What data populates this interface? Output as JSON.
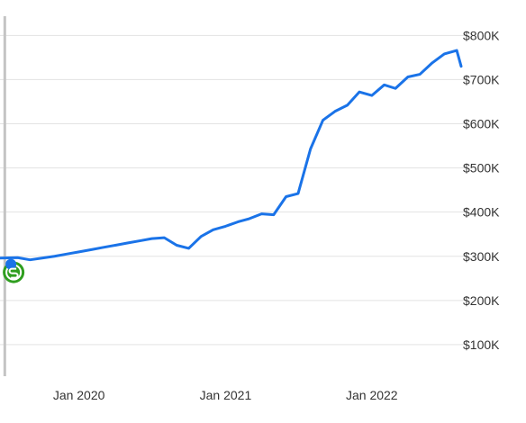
{
  "colors": {
    "line": "#1a73e8",
    "grid": "#e3e3e3",
    "cursor": "#c4c4c4",
    "marker": "#2f9e1f",
    "marker_dot": "#1a73e8",
    "background": "#ffffff"
  },
  "icons": {
    "sale_marker": "dollar-sale-icon"
  },
  "chart_data": {
    "type": "line",
    "title": "",
    "xlabel": "",
    "ylabel": "",
    "ylim": [
      0,
      870000
    ],
    "xlim": [
      "2019-06-18",
      "2022-08-12"
    ],
    "grid": true,
    "y_ticks": [
      {
        "value": 100000,
        "label": "$100K"
      },
      {
        "value": 200000,
        "label": "$200K"
      },
      {
        "value": 300000,
        "label": "$300K"
      },
      {
        "value": 400000,
        "label": "$400K"
      },
      {
        "value": 500000,
        "label": "$500K"
      },
      {
        "value": 600000,
        "label": "$600K"
      },
      {
        "value": 700000,
        "label": "$700K"
      },
      {
        "value": 800000,
        "label": "$800K"
      }
    ],
    "x_ticks": [
      {
        "value": "2020-01-01",
        "label": "Jan 2020"
      },
      {
        "value": "2021-01-01",
        "label": "Jan 2021"
      },
      {
        "value": "2022-01-01",
        "label": "Jan 2022"
      }
    ],
    "x": [
      "2019-06-18",
      "2019-08-01",
      "2019-09-01",
      "2019-10-01",
      "2019-11-01",
      "2019-12-01",
      "2020-01-01",
      "2020-02-01",
      "2020-03-01",
      "2020-04-01",
      "2020-05-01",
      "2020-06-01",
      "2020-07-01",
      "2020-08-01",
      "2020-09-01",
      "2020-10-01",
      "2020-11-01",
      "2020-12-01",
      "2021-01-01",
      "2021-02-01",
      "2021-03-01",
      "2021-04-01",
      "2021-05-01",
      "2021-06-01",
      "2021-07-01",
      "2021-08-01",
      "2021-09-01",
      "2021-10-01",
      "2021-11-01",
      "2021-12-01",
      "2022-01-01",
      "2022-02-01",
      "2022-03-01",
      "2022-04-01",
      "2022-05-01",
      "2022-06-01",
      "2022-07-01",
      "2022-08-01"
    ],
    "values": [
      296000,
      297000,
      292000,
      296000,
      300000,
      305000,
      310000,
      315000,
      320000,
      325000,
      330000,
      335000,
      340000,
      342000,
      325000,
      318000,
      345000,
      360000,
      368000,
      378000,
      385000,
      396000,
      394000,
      435000,
      442000,
      543000,
      608000,
      628000,
      642000,
      672000,
      664000,
      688000,
      680000,
      706000,
      712000,
      738000,
      758000,
      766000
    ],
    "values_tail": {
      "x": [
        "2022-08-01",
        "2022-08-12"
      ],
      "values": [
        766000,
        730000
      ]
    },
    "cursor": {
      "x": "2019-06-30"
    },
    "sale_marker": {
      "x": "2019-07-22",
      "value": 280000
    }
  }
}
